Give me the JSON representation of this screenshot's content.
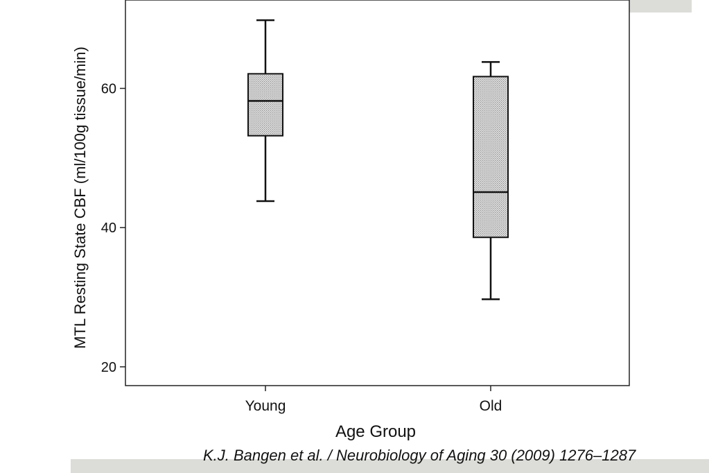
{
  "chart_data": {
    "type": "boxplot",
    "xlabel": "Age Group",
    "ylabel": "MTL Resting State CBF (ml/100g tissue/min)",
    "categories": [
      "Young",
      "Old"
    ],
    "ylim": [
      17.3,
      72.7
    ],
    "yticks": [
      20,
      40,
      60
    ],
    "grid": false,
    "boxes": [
      {
        "category": "Young",
        "min": 43.8,
        "q1": 53.2,
        "median": 58.2,
        "q3": 62.1,
        "max": 69.8
      },
      {
        "category": "Old",
        "min": 29.7,
        "q1": 38.6,
        "median": 45.1,
        "q3": 61.7,
        "max": 63.8
      }
    ],
    "box_fill": "#d0d0d0",
    "line_color": "#111111"
  },
  "citation": "K.J. Bangen et al. / Neurobiology of Aging 30 (2009) 1276–1287"
}
